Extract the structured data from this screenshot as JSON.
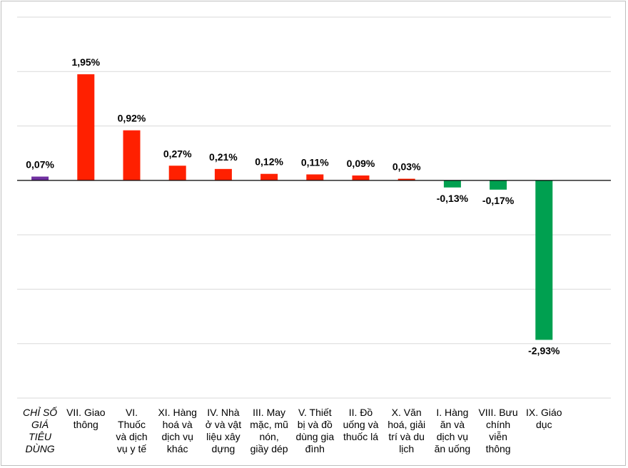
{
  "chart_data": {
    "type": "bar",
    "categories": [
      [
        "CHỈ SỐ",
        "GIÁ",
        "TIÊU",
        "DÙNG"
      ],
      [
        "VII. Giao",
        "thông"
      ],
      [
        "VI.",
        "Thuốc",
        "và dịch",
        "vụ y tế"
      ],
      [
        "XI. Hàng",
        "hoá và",
        "dịch vụ",
        "khác"
      ],
      [
        "IV. Nhà",
        "ở và vật",
        "liệu xây",
        "dựng"
      ],
      [
        "III. May",
        "mặc, mũ",
        "nón,",
        "giầy dép"
      ],
      [
        "V. Thiết",
        "bị và đồ",
        "dùng gia",
        "đình"
      ],
      [
        "II. Đồ",
        "uống và",
        "thuốc lá"
      ],
      [
        "X. Văn",
        "hoá, giải",
        "trí và du",
        "lịch"
      ],
      [
        "I. Hàng",
        "ăn và",
        "dịch vụ",
        "ăn uống"
      ],
      [
        "VIII. Bưu",
        "chính",
        "viễn",
        "thông"
      ],
      [
        "IX. Giáo",
        "dục"
      ]
    ],
    "values": [
      0.07,
      1.95,
      0.92,
      0.27,
      0.21,
      0.12,
      0.11,
      0.09,
      0.03,
      -0.13,
      -0.17,
      -2.93
    ],
    "labels": [
      "0,07%",
      "1,95%",
      "0,92%",
      "0,27%",
      "0,21%",
      "0,12%",
      "0,11%",
      "0,09%",
      "0,03%",
      "-0,13%",
      "-0,17%",
      "-2,93%"
    ],
    "ylim": [
      -4,
      3
    ],
    "grid": true,
    "colors": {
      "index": "#7030a0",
      "positive": "#ff2000",
      "negative": "#00a050",
      "gridline": "#d9d9d9",
      "zeroline": "#000000"
    }
  }
}
